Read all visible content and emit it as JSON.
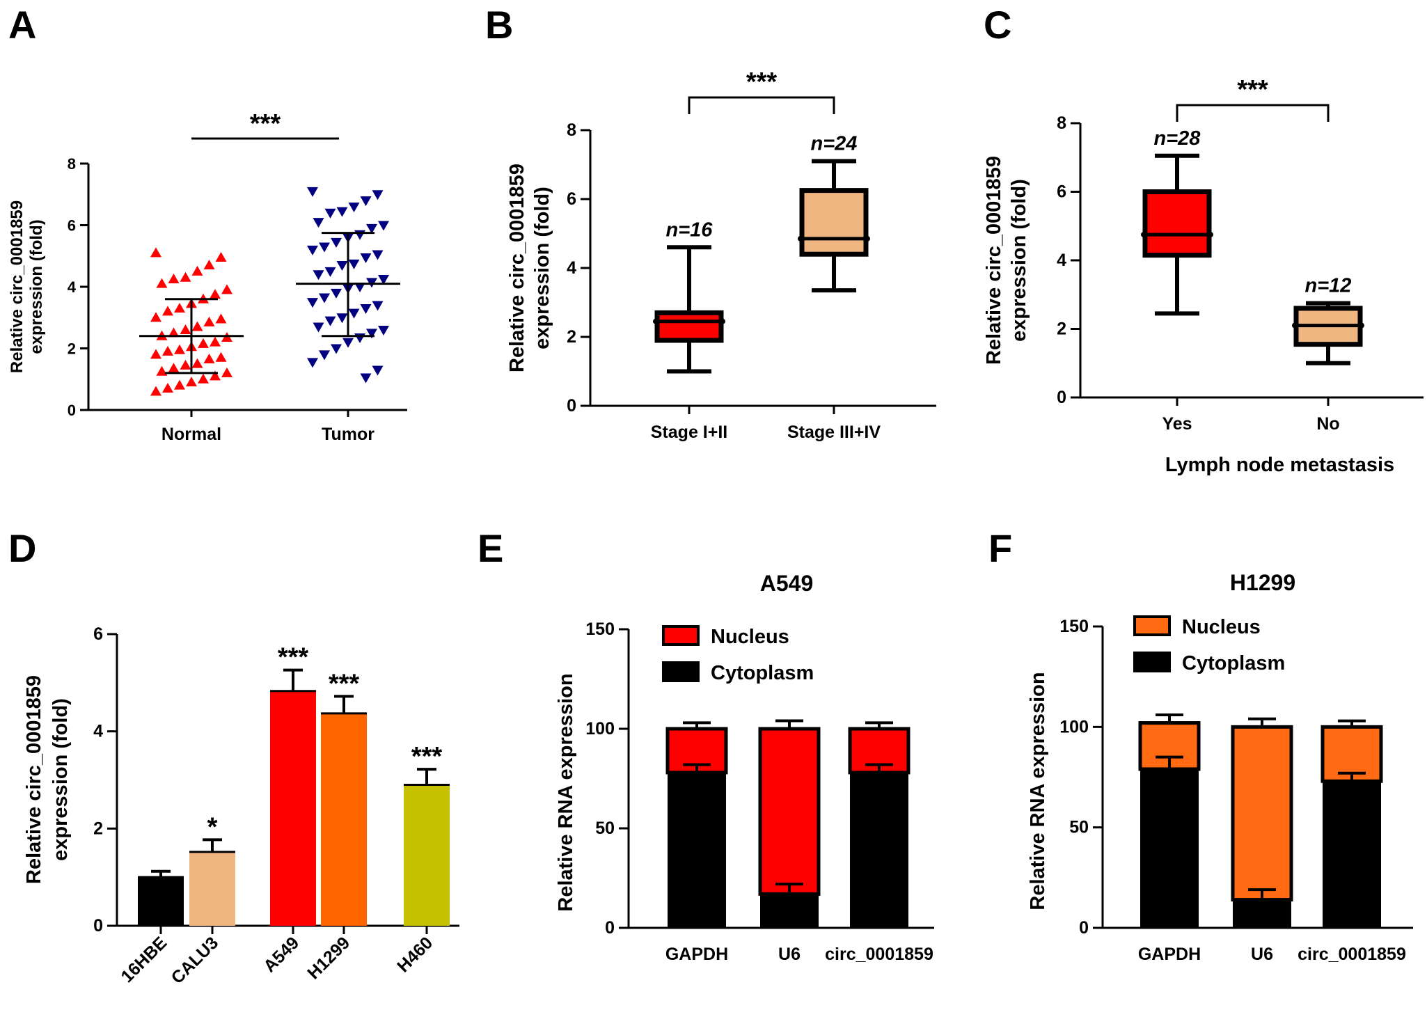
{
  "panel_letters": [
    "A",
    "B",
    "C",
    "D",
    "E",
    "F"
  ],
  "colors": {
    "red": "#ff0000",
    "navy": "#000080",
    "peach": "#f0b682",
    "orange": "#ff6600",
    "olive": "#c5c100",
    "black": "#000000",
    "orange_f": "#ff6a13"
  },
  "chart_data": [
    {
      "panel": "A",
      "type": "scatter",
      "ylabel": [
        "Relative circ_0001859",
        "expression (fold)"
      ],
      "ylim": [
        0,
        8
      ],
      "yticks": [
        "0",
        "2",
        "4",
        "6",
        "8"
      ],
      "categories": [
        "Normal",
        "Tumor"
      ],
      "significance": "***",
      "series": [
        {
          "name": "Normal",
          "marker": "triangle-up",
          "color": "red",
          "mean": 2.4,
          "sd_low": 1.2,
          "sd_high": 3.6,
          "values": [
            5.1,
            4.95,
            4.7,
            4.5,
            4.3,
            4.25,
            4.1,
            3.9,
            3.75,
            3.6,
            3.45,
            3.3,
            3.2,
            3.0,
            2.95,
            2.85,
            2.7,
            2.6,
            2.5,
            2.4,
            2.35,
            2.2,
            2.15,
            2.05,
            1.95,
            1.9,
            1.8,
            1.7,
            1.65,
            1.5,
            1.45,
            1.35,
            1.25,
            1.2,
            1.1,
            1.0,
            0.9,
            0.8,
            0.7,
            0.6
          ]
        },
        {
          "name": "Tumor",
          "marker": "triangle-down",
          "color": "navy",
          "mean": 4.1,
          "sd_low": 2.4,
          "sd_high": 5.75,
          "values": [
            7.1,
            7.0,
            6.8,
            6.6,
            6.45,
            6.4,
            6.1,
            6.0,
            5.9,
            5.7,
            5.6,
            5.45,
            5.3,
            5.2,
            5.05,
            4.95,
            4.75,
            4.7,
            4.5,
            4.4,
            4.25,
            4.15,
            4.0,
            3.95,
            3.8,
            3.65,
            3.5,
            3.4,
            3.3,
            3.15,
            3.0,
            2.9,
            2.7,
            2.6,
            2.5,
            2.35,
            2.2,
            2.0,
            1.8,
            1.55,
            1.3,
            1.05
          ]
        }
      ]
    },
    {
      "panel": "B",
      "type": "box",
      "ylabel": [
        "Relative circ_0001859",
        "expression (fold)"
      ],
      "ylim": [
        0,
        8
      ],
      "yticks": [
        "0",
        "2",
        "4",
        "6",
        "8"
      ],
      "categories": [
        "Stage I+II",
        "Stage III+IV"
      ],
      "significance": "***",
      "boxes": [
        {
          "name": "Stage I+II",
          "color": "red",
          "min": 1.0,
          "q1": 1.9,
          "median": 2.45,
          "q3": 2.7,
          "max": 4.6,
          "n_label": "n=16"
        },
        {
          "name": "Stage III+IV",
          "color": "peach",
          "min": 3.35,
          "q1": 4.4,
          "median": 4.85,
          "q3": 6.25,
          "max": 7.1,
          "n_label": "n=24"
        }
      ]
    },
    {
      "panel": "C",
      "type": "box",
      "ylabel": [
        "Relative circ_0001859",
        "expression (fold)"
      ],
      "xlabel": "Lymph node metastasis",
      "ylim": [
        0,
        8
      ],
      "yticks": [
        "0",
        "2",
        "4",
        "6",
        "8"
      ],
      "categories": [
        "Yes",
        "No"
      ],
      "significance": "***",
      "boxes": [
        {
          "name": "Yes",
          "color": "red",
          "min": 2.45,
          "q1": 4.15,
          "median": 4.75,
          "q3": 6.0,
          "max": 7.05,
          "n_label": "n=28"
        },
        {
          "name": "No",
          "color": "peach",
          "min": 1.0,
          "q1": 1.55,
          "median": 2.1,
          "q3": 2.6,
          "max": 2.75,
          "n_label": "n=12"
        }
      ]
    },
    {
      "panel": "D",
      "type": "bar",
      "ylabel": [
        "Relative circ_0001859",
        "expression (fold)"
      ],
      "ylim": [
        0,
        6
      ],
      "yticks": [
        "0",
        "2",
        "4",
        "6"
      ],
      "categories": [
        "16HBE",
        "CALU3",
        "A549",
        "H1299",
        "H460"
      ],
      "values": [
        1.0,
        1.52,
        4.83,
        4.37,
        2.9
      ],
      "errors": [
        0.12,
        0.25,
        0.43,
        0.35,
        0.32
      ],
      "colors": [
        "black",
        "peach",
        "red",
        "orange",
        "olive"
      ],
      "significance": [
        "",
        "*",
        "***",
        "***",
        "***"
      ]
    },
    {
      "panel": "E",
      "type": "stacked-bar",
      "title": "A549",
      "ylabel": "Relative RNA expression",
      "ylim": [
        0,
        150
      ],
      "yticks": [
        "0",
        "50",
        "100",
        "150"
      ],
      "categories": [
        "GAPDH",
        "U6",
        "circ_0001859"
      ],
      "legend": [
        "Nucleus",
        "Cytoplasm"
      ],
      "series": [
        {
          "name": "Cytoplasm",
          "color": "black",
          "values": [
            78,
            17,
            78
          ],
          "errors": [
            4,
            5,
            4
          ]
        },
        {
          "name": "Nucleus",
          "color": "red",
          "values": [
            22,
            83,
            22
          ],
          "errors": [
            3,
            4,
            3
          ]
        }
      ]
    },
    {
      "panel": "F",
      "type": "stacked-bar",
      "title": "H1299",
      "ylabel": "Relative RNA expression",
      "ylim": [
        0,
        150
      ],
      "yticks": [
        "0",
        "50",
        "100",
        "150"
      ],
      "categories": [
        "GAPDH",
        "U6",
        "circ_0001859"
      ],
      "legend": [
        "Nucleus",
        "Cytoplasm"
      ],
      "series": [
        {
          "name": "Cytoplasm",
          "color": "black",
          "values": [
            79,
            14,
            73
          ],
          "errors": [
            6,
            5,
            4
          ]
        },
        {
          "name": "Nucleus",
          "color": "orange_f",
          "values": [
            23,
            86,
            27
          ],
          "errors": [
            4,
            4,
            3
          ]
        }
      ]
    }
  ]
}
